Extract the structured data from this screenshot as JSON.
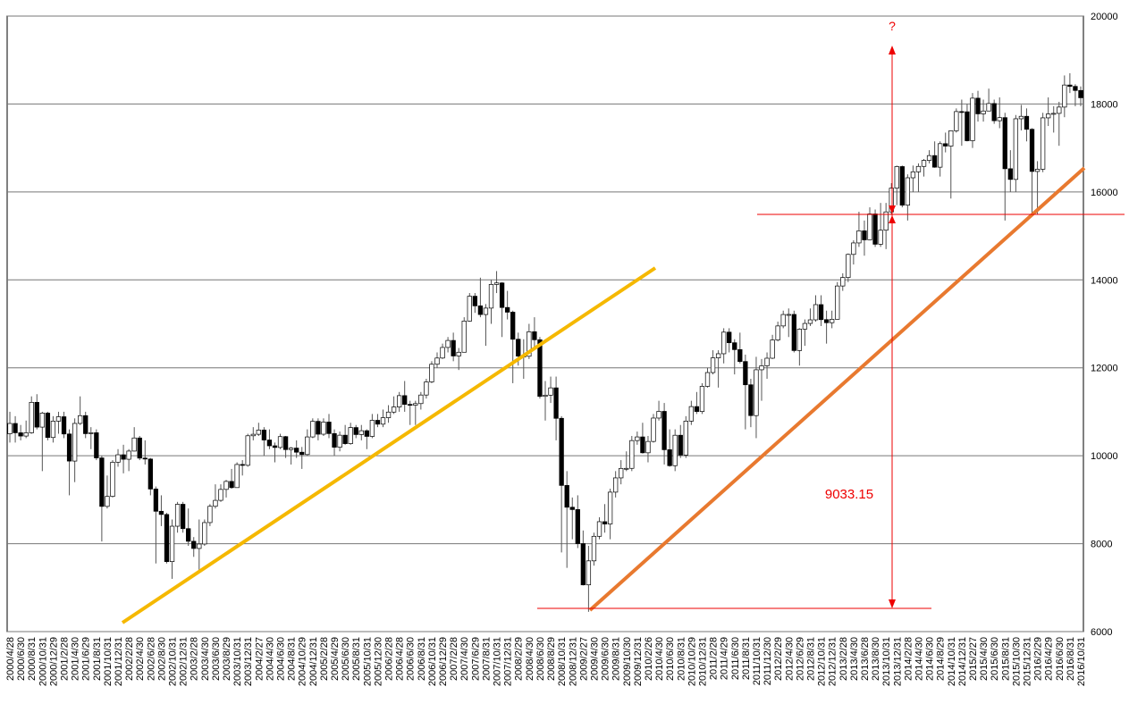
{
  "chart_data": {
    "type": "candlestick",
    "categories": [
      "2000/4/28",
      null,
      "2000/6/30",
      null,
      "2000/8/31",
      null,
      "2000/10/31",
      null,
      "2000/12/29",
      null,
      "2001/2/28",
      null,
      "2001/4/30",
      null,
      "2001/6/29",
      null,
      "2001/8/31",
      null,
      "2001/10/31",
      null,
      "2001/12/31",
      null,
      "2002/2/28",
      null,
      "2002/4/30",
      null,
      "2002/6/28",
      null,
      "2002/8/30",
      null,
      "2002/10/31",
      null,
      "2002/12/31",
      null,
      "2003/2/28",
      null,
      "2003/4/30",
      null,
      "2003/6/30",
      null,
      "2003/8/29",
      null,
      "2003/10/31",
      null,
      "2003/12/31",
      null,
      "2004/2/27",
      null,
      "2004/4/30",
      null,
      "2004/6/30",
      null,
      "2004/8/31",
      null,
      "2004/10/29",
      null,
      "2004/12/31",
      null,
      "2005/2/28",
      null,
      "2005/4/29",
      null,
      "2005/6/30",
      null,
      "2005/8/31",
      null,
      "2005/10/31",
      null,
      "2005/12/30",
      null,
      "2006/2/28",
      null,
      "2006/4/28",
      null,
      "2006/6/30",
      null,
      "2006/8/31",
      null,
      "2006/10/31",
      null,
      "2006/12/29",
      null,
      "2007/2/28",
      null,
      "2007/4/30",
      null,
      "2007/6/29",
      null,
      "2007/8/31",
      null,
      "2007/10/31",
      null,
      "2007/12/31",
      null,
      "2008/2/29",
      null,
      "2008/4/30",
      null,
      "2008/6/30",
      null,
      "2008/8/29",
      null,
      "2008/10/31",
      null,
      "2008/12/31",
      null,
      "2009/2/27",
      null,
      "2009/4/30",
      null,
      "2009/6/30",
      null,
      "2009/8/31",
      null,
      "2009/10/30",
      null,
      "2009/12/31",
      null,
      "2010/2/26",
      null,
      "2010/4/30",
      null,
      "2010/6/30",
      null,
      "2010/8/31",
      null,
      "2010/10/29",
      null,
      "2010/12/31",
      null,
      "2011/2/28",
      null,
      "2011/4/29",
      null,
      "2011/6/30",
      null,
      "2011/8/31",
      null,
      "2011/10/31",
      null,
      "2011/12/30",
      null,
      "2012/2/29",
      null,
      "2012/4/30",
      null,
      "2012/6/29",
      null,
      "2012/8/31",
      null,
      "2012/10/31",
      null,
      "2012/12/31",
      null,
      "2013/2/28",
      null,
      "2013/4/30",
      null,
      "2013/6/28",
      null,
      "2013/8/30",
      null,
      "2013/10/31",
      null,
      "2013/12/31",
      null,
      "2014/2/28",
      null,
      "2014/4/30",
      null,
      "2014/6/30",
      null,
      "2014/8/29",
      null,
      "2014/10/31",
      null,
      "2014/12/31",
      null,
      "2015/2/27",
      null,
      "2015/4/30",
      null,
      "2015/6/30",
      null,
      "2015/8/31",
      null,
      "2015/10/30",
      null,
      "2015/12/31",
      null,
      "2016/2/29",
      null,
      "2016/4/29",
      null,
      "2016/6/30",
      null,
      "2016/8/31",
      null,
      "2016/10/31"
    ],
    "open": [
      10500,
      10734,
      10522,
      10448,
      10522,
      11215,
      10651,
      10971,
      10415,
      10787,
      10887,
      10495,
      9879,
      10735,
      10912,
      10502,
      10523,
      9950,
      8848,
      9075,
      9852,
      10022,
      9920,
      10106,
      10404,
      9946,
      9925,
      9243,
      8737,
      8664,
      7592,
      8397,
      8896,
      8342,
      8054,
      7891,
      7992,
      8480,
      8850,
      8985,
      9234,
      9416,
      9275,
      9801,
      9782,
      10454,
      10488,
      10584,
      10358,
      10226,
      10188,
      10435,
      10140,
      10174,
      10080,
      10027,
      10428,
      10783,
      10490,
      10766,
      10504,
      10193,
      10467,
      10275,
      10641,
      10482,
      10569,
      10440,
      10806,
      10718,
      10865,
      10993,
      11109,
      11367,
      11168,
      11150,
      11186,
      11381,
      11679,
      12081,
      12222,
      12463,
      12622,
      12269,
      12354,
      13063,
      13628,
      13409,
      13212,
      13358,
      13896,
      13930,
      13372,
      13265,
      12650,
      12266,
      12263,
      12820,
      12638,
      11350,
      11378,
      11544,
      10851,
      9325,
      8829,
      8776,
      8001,
      7063,
      7609,
      8168,
      8500,
      8447,
      9172,
      9496,
      9712,
      9713,
      10345,
      10428,
      10067,
      10325,
      10857,
      11009,
      10137,
      9774,
      10466,
      10015,
      10788,
      11118,
      11006,
      11578,
      11892,
      12226,
      12320,
      12811,
      12570,
      12414,
      12143,
      11614,
      10913,
      11955,
      12046,
      12218,
      12633,
      12952,
      13212,
      13214,
      12393,
      12880,
      13009,
      13091,
      13437,
      13096,
      13026,
      13104,
      13861,
      14054,
      14579,
      14840,
      15116,
      14910,
      15500,
      14810,
      15130,
      15546,
      16086,
      16577,
      15699,
      16322,
      16458,
      16581,
      16717,
      16827,
      16563,
      17098,
      17043,
      17391,
      17828,
      17823,
      17165,
      18133,
      17776,
      17841,
      18011,
      17620,
      17690,
      16528,
      16285,
      17664,
      17720,
      17425,
      16466,
      16517,
      17685,
      17774,
      17787,
      17930,
      18432,
      18401,
      18308
    ],
    "high": [
      11000,
      10900,
      10700,
      10800,
      11350,
      11400,
      11000,
      11000,
      10900,
      11000,
      11000,
      10600,
      10850,
      11350,
      11000,
      10650,
      10600,
      10000,
      9550,
      9900,
      10150,
      10250,
      10150,
      10650,
      10450,
      10350,
      9950,
      9300,
      9100,
      8700,
      8550,
      8950,
      8950,
      8800,
      8150,
      8550,
      8550,
      8900,
      9350,
      9350,
      9450,
      9700,
      9850,
      9900,
      10500,
      10650,
      10750,
      10650,
      10600,
      10300,
      10500,
      10450,
      10200,
      10350,
      10200,
      10600,
      10850,
      10850,
      10850,
      10950,
      10600,
      10550,
      10700,
      10750,
      10700,
      10700,
      10600,
      10950,
      10950,
      11050,
      11150,
      11350,
      11450,
      11700,
      11250,
      11250,
      11450,
      11750,
      12150,
      12350,
      12550,
      12700,
      12800,
      12450,
      13150,
      13700,
      13700,
      14050,
      13450,
      14000,
      14200,
      13950,
      13750,
      13300,
      12800,
      12650,
      13000,
      13150,
      12700,
      11700,
      11800,
      11800,
      10900,
      9650,
      9050,
      9100,
      8300,
      7950,
      8250,
      8600,
      8900,
      9250,
      9650,
      9900,
      10100,
      10450,
      10550,
      10750,
      10450,
      10950,
      11250,
      11200,
      10600,
      10600,
      10700,
      10900,
      11250,
      11450,
      11650,
      12000,
      12400,
      12400,
      12900,
      12900,
      12650,
      12800,
      12300,
      11750,
      12250,
      12200,
      12350,
      12750,
      13050,
      13300,
      13350,
      13300,
      12900,
      13100,
      13350,
      13650,
      13650,
      13300,
      13300,
      13950,
      14150,
      14600,
      14900,
      15550,
      15350,
      15650,
      15600,
      15750,
      15750,
      16200,
      16600,
      16600,
      16400,
      16600,
      16650,
      16750,
      16950,
      17150,
      17150,
      17350,
      17400,
      17900,
      18100,
      18000,
      18250,
      18300,
      18100,
      18350,
      18100,
      18150,
      17800,
      16950,
      17750,
      17980,
      17900,
      17450,
      16700,
      17800,
      18150,
      17950,
      18050,
      18650,
      18700,
      18450,
      18400
    ],
    "low": [
      10300,
      10300,
      10350,
      10400,
      10500,
      10600,
      9650,
      10350,
      10300,
      10500,
      10400,
      9100,
      9400,
      10700,
      10400,
      10150,
      9900,
      8050,
      8800,
      9050,
      9750,
      9600,
      9650,
      10100,
      9900,
      9800,
      9100,
      7550,
      8400,
      7550,
      7200,
      8250,
      8250,
      7950,
      7700,
      7400,
      7950,
      8400,
      8800,
      8950,
      9050,
      9250,
      9300,
      9550,
      9750,
      10350,
      10450,
      10000,
      10150,
      9850,
      10150,
      9950,
      9800,
      9950,
      9700,
      10000,
      10400,
      10350,
      10450,
      10400,
      10000,
      10100,
      10250,
      10250,
      10400,
      10350,
      10150,
      10400,
      10650,
      10650,
      10750,
      10950,
      11000,
      11000,
      10700,
      10700,
      11050,
      11300,
      11650,
      12000,
      12200,
      12350,
      12150,
      11950,
      12350,
      13050,
      13250,
      13150,
      12500,
      13000,
      13700,
      12700,
      13100,
      11650,
      12050,
      11750,
      12200,
      12450,
      11300,
      10800,
      11200,
      10350,
      7800,
      7450,
      8100,
      7900,
      7050,
      6450,
      7500,
      8100,
      8250,
      8100,
      9050,
      9350,
      9650,
      9650,
      10250,
      10050,
      9850,
      10300,
      10800,
      9800,
      9750,
      9650,
      9950,
      9950,
      10700,
      10950,
      10950,
      11550,
      11850,
      11550,
      12100,
      12350,
      11850,
      12100,
      10600,
      10650,
      10400,
      11250,
      11750,
      12200,
      12600,
      12900,
      12700,
      12350,
      12050,
      12500,
      12950,
      13050,
      12950,
      12550,
      12900,
      13100,
      13750,
      13950,
      14350,
      14750,
      14550,
      14900,
      14750,
      14750,
      14700,
      15500,
      15700,
      15650,
      15350,
      16000,
      16000,
      16350,
      16650,
      16550,
      16350,
      16900,
      15850,
      17350,
      17050,
      17150,
      17000,
      17600,
      17600,
      17850,
      17550,
      17450,
      15350,
      16000,
      16000,
      17400,
      17150,
      15450,
      15500,
      16450,
      17500,
      17350,
      17050,
      17700,
      18250,
      17950,
      17950
    ],
    "close": [
      10734,
      10522,
      10448,
      10522,
      11215,
      10651,
      10971,
      10415,
      10787,
      10887,
      10495,
      9879,
      10735,
      10912,
      10502,
      10523,
      9950,
      8848,
      9075,
      9852,
      10022,
      9920,
      10106,
      10404,
      9946,
      9925,
      9243,
      8737,
      8664,
      7592,
      8397,
      8896,
      8342,
      8054,
      7891,
      7992,
      8480,
      8850,
      8985,
      9234,
      9416,
      9275,
      9801,
      9782,
      10454,
      10488,
      10584,
      10358,
      10226,
      10188,
      10435,
      10140,
      10174,
      10080,
      10027,
      10428,
      10783,
      10490,
      10766,
      10504,
      10193,
      10467,
      10275,
      10641,
      10482,
      10569,
      10440,
      10806,
      10718,
      10865,
      10993,
      11109,
      11367,
      11168,
      11150,
      11186,
      11381,
      11679,
      12081,
      12222,
      12463,
      12622,
      12269,
      12354,
      13063,
      13628,
      13409,
      13212,
      13358,
      13896,
      13930,
      13372,
      13265,
      12650,
      12266,
      12263,
      12820,
      12638,
      11350,
      11378,
      11544,
      10851,
      9325,
      8829,
      8776,
      8001,
      7063,
      7609,
      8168,
      8500,
      8447,
      9172,
      9496,
      9712,
      9713,
      10345,
      10428,
      10067,
      10325,
      10857,
      11009,
      10137,
      9774,
      10466,
      10015,
      10788,
      11118,
      11006,
      11578,
      11892,
      12226,
      12320,
      12811,
      12570,
      12414,
      12143,
      11614,
      10913,
      11955,
      12046,
      12218,
      12633,
      12952,
      13212,
      13214,
      12393,
      12880,
      13009,
      13091,
      13437,
      13096,
      13026,
      13104,
      13861,
      14054,
      14579,
      14840,
      15116,
      14910,
      15500,
      14810,
      15130,
      15546,
      16086,
      16577,
      15699,
      16322,
      16458,
      16581,
      16717,
      16827,
      16563,
      17098,
      17043,
      17391,
      17828,
      17823,
      17165,
      18133,
      17776,
      17841,
      18011,
      17620,
      17690,
      16528,
      16285,
      17664,
      17720,
      17425,
      16466,
      16517,
      17685,
      17774,
      17787,
      17930,
      18432,
      18401,
      18308,
      18142
    ],
    "ylim": [
      6000,
      20000
    ],
    "yticks": [
      6000,
      8000,
      10000,
      12000,
      14000,
      16000,
      18000,
      20000
    ],
    "grid": true,
    "up_color": "#ffffff",
    "down_color": "#000000",
    "annotations": [
      "9033.15",
      "?"
    ]
  }
}
